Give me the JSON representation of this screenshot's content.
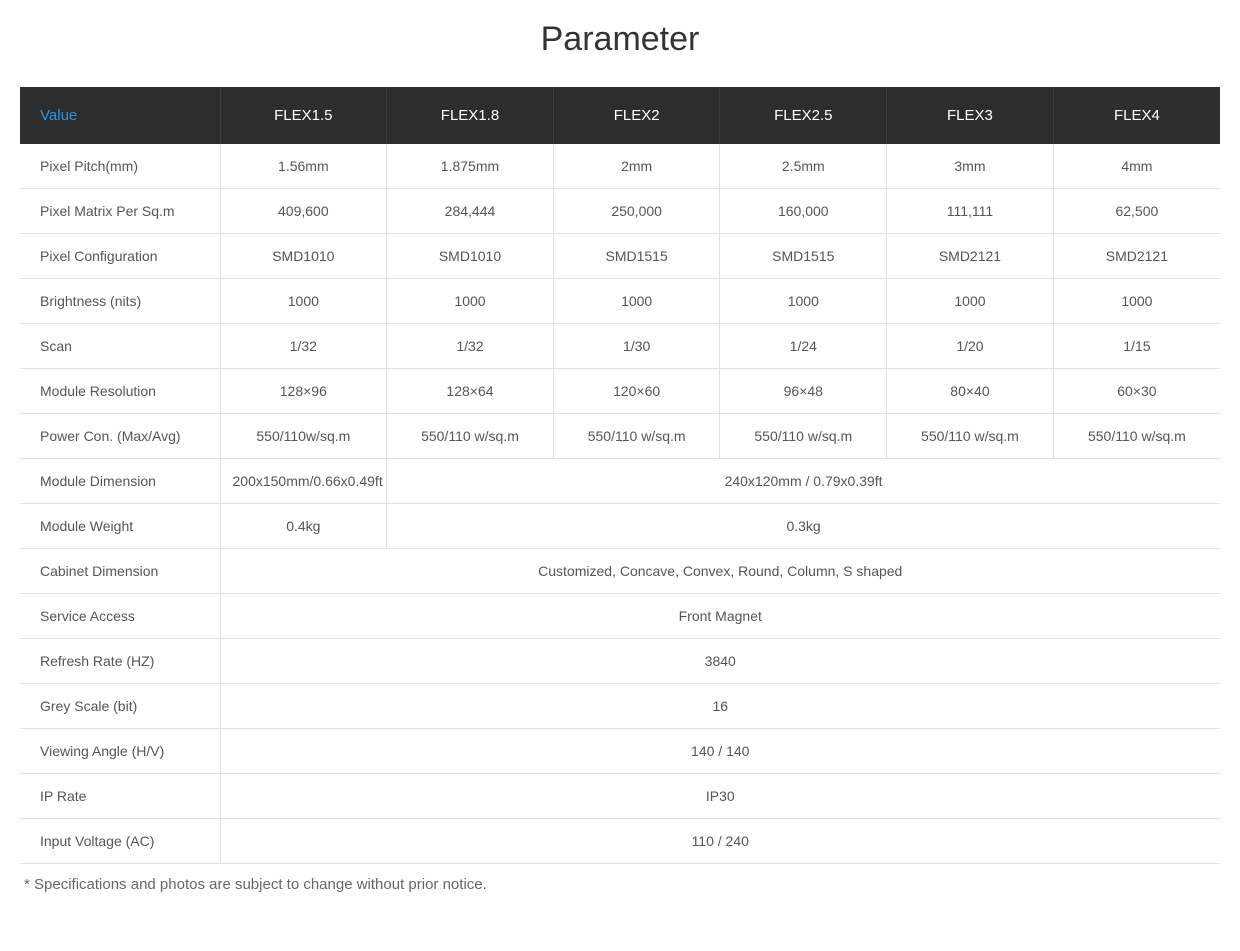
{
  "title": "Parameter",
  "table": {
    "header_label": "Value",
    "columns": [
      "FLEX1.5",
      "FLEX1.8",
      "FLEX2",
      "FLEX2.5",
      "FLEX3",
      "FLEX4"
    ],
    "rows": [
      {
        "label": "Pixel Pitch(mm)",
        "cells": [
          "1.56mm",
          "1.875mm",
          "2mm",
          "2.5mm",
          "3mm",
          "4mm"
        ]
      },
      {
        "label": "Pixel Matrix Per Sq.m",
        "cells": [
          "409,600",
          "284,444",
          "250,000",
          "160,000",
          "111,111",
          "62,500"
        ]
      },
      {
        "label": "Pixel Configuration",
        "cells": [
          "SMD1010",
          "SMD1010",
          "SMD1515",
          "SMD1515",
          "SMD2121",
          "SMD2121"
        ]
      },
      {
        "label": "Brightness (nits)",
        "cells": [
          "1000",
          "1000",
          "1000",
          "1000",
          "1000",
          "1000"
        ]
      },
      {
        "label": "Scan",
        "cells": [
          "1/32",
          "1/32",
          "1/30",
          "1/24",
          "1/20",
          "1/15"
        ]
      },
      {
        "label": "Module Resolution",
        "cells": [
          "128×96",
          "128×64",
          "120×60",
          "96×48",
          "80×40",
          "60×30"
        ]
      },
      {
        "label": "Power Con. (Max/Avg)",
        "cells": [
          "550/110w/sq.m",
          "550/110 w/sq.m",
          "550/110 w/sq.m",
          "550/110 w/sq.m",
          "550/110 w/sq.m",
          "550/110 w/sq.m"
        ]
      },
      {
        "label": "Module Dimension",
        "spans": [
          {
            "text": "200x150mm/0.66x0.49ft",
            "colspan": 1
          },
          {
            "text": "240x120mm / 0.79x0.39ft",
            "colspan": 5
          }
        ]
      },
      {
        "label": "Module Weight",
        "spans": [
          {
            "text": "0.4kg",
            "colspan": 1
          },
          {
            "text": "0.3kg",
            "colspan": 5
          }
        ]
      },
      {
        "label": "Cabinet Dimension",
        "spans": [
          {
            "text": "Customized, Concave, Convex, Round, Column, S shaped",
            "colspan": 6
          }
        ]
      },
      {
        "label": "Service Access",
        "spans": [
          {
            "text": "Front Magnet",
            "colspan": 6
          }
        ]
      },
      {
        "label": "Refresh Rate (HZ)",
        "spans": [
          {
            "text": "3840",
            "colspan": 6
          }
        ]
      },
      {
        "label": "Grey Scale (bit)",
        "spans": [
          {
            "text": "16",
            "colspan": 6
          }
        ]
      },
      {
        "label": "Viewing Angle (H/V)",
        "spans": [
          {
            "text": "140 / 140",
            "colspan": 6
          }
        ]
      },
      {
        "label": "IP Rate",
        "spans": [
          {
            "text": "IP30",
            "colspan": 6
          }
        ]
      },
      {
        "label": "Input Voltage (AC)",
        "spans": [
          {
            "text": "110 / 240",
            "colspan": 6
          }
        ]
      }
    ]
  },
  "footnote": "* Specifications and photos are subject to change without prior notice.",
  "styling": {
    "header_bg": "#2d2d2d",
    "header_text": "#ffffff",
    "value_label_color": "#2196f3",
    "body_text": "#555555",
    "border_color": "#e0e0e0",
    "title_fontsize": 34,
    "cell_fontsize": 14,
    "header_fontsize": 15
  }
}
